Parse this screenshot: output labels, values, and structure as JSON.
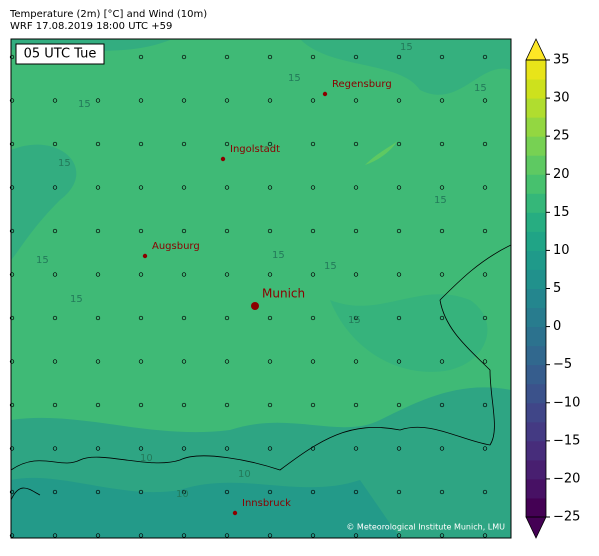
{
  "header": {
    "line1": "Temperature (2m) [°C] and Wind (10m)",
    "line2": "WRF 17.08.2019 18:00 UTC +59"
  },
  "time_label": "05 UTC Tue",
  "cities": [
    {
      "name": "Regensburg"
    },
    {
      "name": "Ingolstadt"
    },
    {
      "name": "Augsburg"
    },
    {
      "name": "Munich"
    },
    {
      "name": "Innsbruck"
    }
  ],
  "contour_labels": [
    15,
    15,
    15,
    15,
    15,
    15,
    15,
    15,
    15,
    15,
    15,
    10,
    10,
    10
  ],
  "copyright": "© Meteorological Institute Munich, LMU",
  "colorbar": {
    "lim": [
      -25,
      35
    ],
    "ticks": [
      {
        "value": -25,
        "label": "−25"
      },
      {
        "value": -20,
        "label": "−20"
      },
      {
        "value": -15,
        "label": "−15"
      },
      {
        "value": -10,
        "label": "−10"
      },
      {
        "value": -5,
        "label": "−5"
      },
      0,
      5,
      10,
      15,
      20,
      25,
      30,
      35
    ],
    "colors": [
      "#440154",
      "#471164",
      "#481f70",
      "#472d7b",
      "#443a83",
      "#404688",
      "#3b528b",
      "#365d8d",
      "#31688e",
      "#2c728e",
      "#287c8e",
      "#24868e",
      "#21918c",
      "#1f9a8a",
      "#20a486",
      "#27ad81",
      "#35b779",
      "#47c16e",
      "#5ec962",
      "#77d153",
      "#93d741",
      "#b0dd2f",
      "#cde11d",
      "#e8e419"
    ],
    "under_color": "#440154",
    "over_color": "#fde725"
  }
}
